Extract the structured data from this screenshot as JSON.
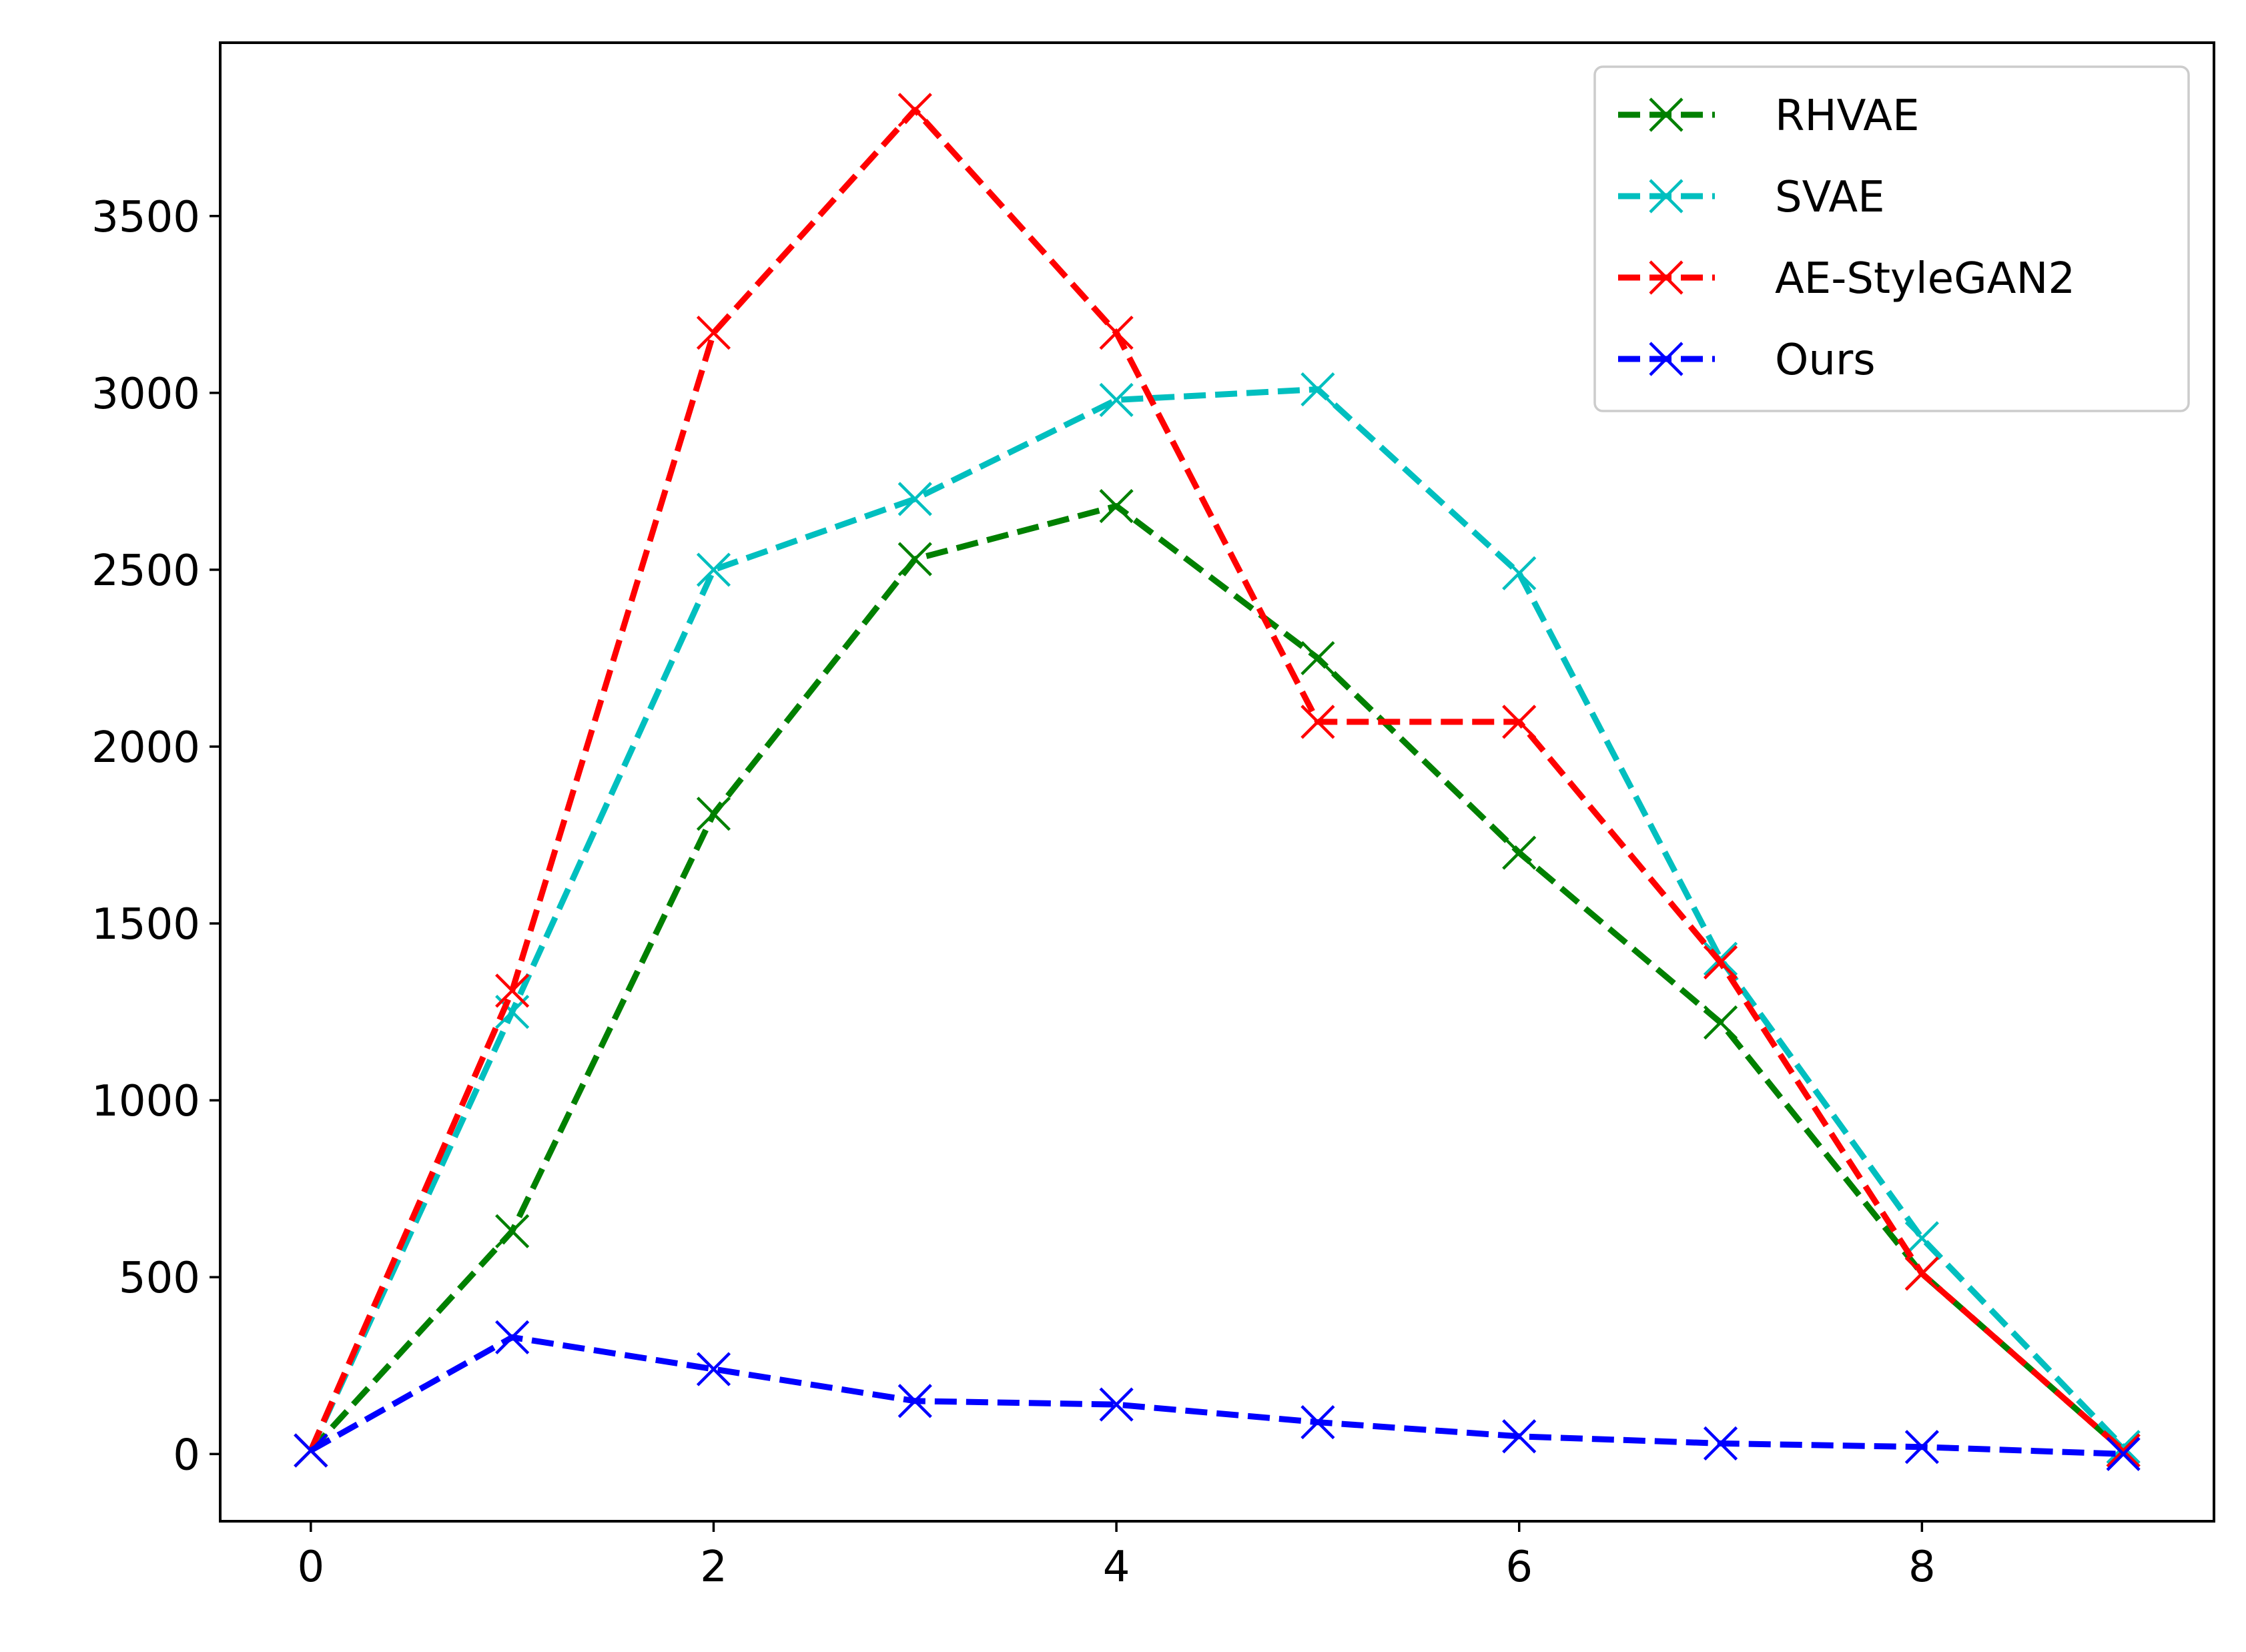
{
  "chart_data": {
    "type": "line",
    "title": "",
    "xlabel": "",
    "ylabel": "",
    "x": [
      0,
      1,
      2,
      3,
      4,
      5,
      6,
      7,
      8,
      9
    ],
    "xlim": [
      -0.45,
      9.45
    ],
    "ylim": [
      -190,
      3990
    ],
    "xticks": [
      0,
      2,
      4,
      6,
      8
    ],
    "yticks": [
      0,
      500,
      1000,
      1500,
      2000,
      2500,
      3000,
      3500
    ],
    "grid": false,
    "legend_position": "top-right",
    "series": [
      {
        "name": "RHVAE",
        "color": "#008000",
        "values": [
          10,
          630,
          1810,
          2530,
          2680,
          2250,
          1700,
          1220,
          510,
          10
        ]
      },
      {
        "name": "SVAE",
        "color": "#00bfbf",
        "values": [
          10,
          1250,
          2500,
          2700,
          2980,
          3010,
          2490,
          1400,
          610,
          20
        ]
      },
      {
        "name": "AE-StyleGAN2",
        "color": "#ff0000",
        "values": [
          10,
          1310,
          3170,
          3800,
          3170,
          2070,
          2070,
          1390,
          510,
          10
        ]
      },
      {
        "name": "Ours",
        "color": "#0000ff",
        "values": [
          10,
          330,
          240,
          150,
          140,
          90,
          50,
          30,
          20,
          0
        ]
      }
    ]
  }
}
